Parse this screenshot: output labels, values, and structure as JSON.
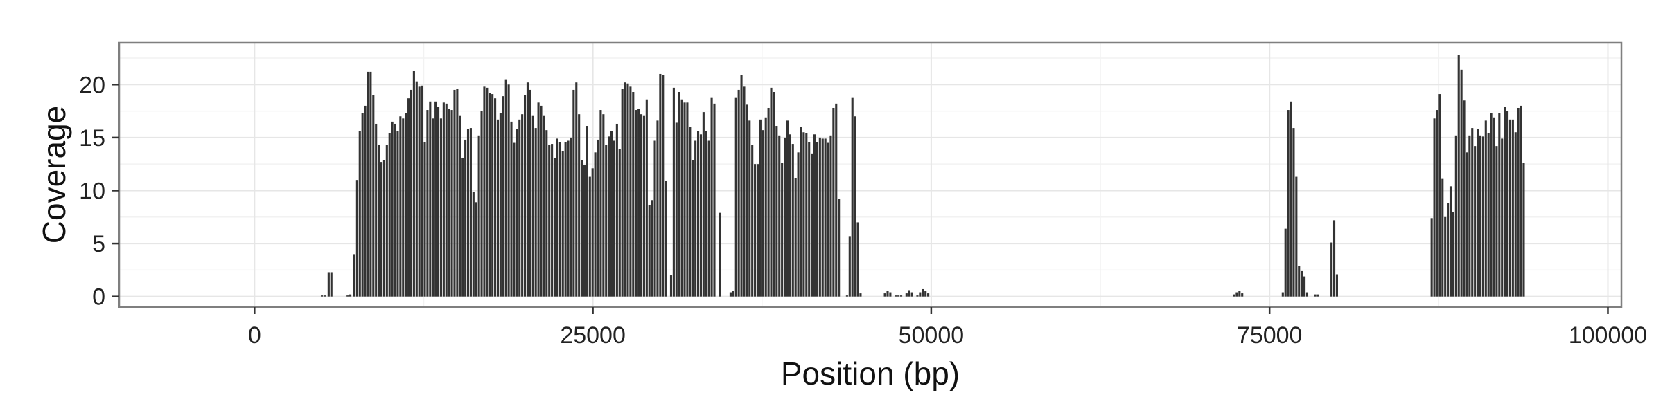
{
  "chart_data": {
    "type": "bar",
    "title": "",
    "xlabel": "Position (bp)",
    "ylabel": "Coverage",
    "xlim": [
      -10000,
      101000
    ],
    "ylim": [
      -1.0,
      24.0
    ],
    "xticks": [
      0,
      25000,
      50000,
      75000,
      100000
    ],
    "xtick_labels": [
      "0",
      "25000",
      "50000",
      "75000",
      "100000"
    ],
    "yticks": [
      0,
      5,
      10,
      15,
      20
    ],
    "ytick_labels": [
      "0",
      "5",
      "10",
      "15",
      "20"
    ],
    "grid": true,
    "bar_width": 200,
    "colors": {
      "bar": "#333333",
      "panel": "#ffffff",
      "grid_major": "#e6e6e6",
      "grid_minor": "#f2f2f2",
      "border": "#7f7f7f"
    },
    "series": [
      {
        "points": [
          [
            5000,
            0.1
          ],
          [
            5200,
            0.1
          ],
          [
            5500,
            2.3
          ],
          [
            5700,
            2.3
          ],
          [
            6900,
            0.1
          ],
          [
            7100,
            0.2
          ],
          [
            7400,
            4.0
          ],
          [
            7600,
            11.0
          ],
          [
            7800,
            15.6
          ],
          [
            8000,
            17.3
          ],
          [
            8200,
            18.0
          ],
          [
            8400,
            21.2
          ],
          [
            8600,
            21.2
          ],
          [
            8800,
            19.0
          ],
          [
            9000,
            16.3
          ],
          [
            9200,
            14.3
          ],
          [
            9400,
            12.7
          ],
          [
            9600,
            12.9
          ],
          [
            9800,
            14.3
          ],
          [
            10000,
            15.4
          ],
          [
            10200,
            16.5
          ],
          [
            10400,
            16.3
          ],
          [
            10600,
            15.6
          ],
          [
            10800,
            17.0
          ],
          [
            11000,
            16.8
          ],
          [
            11200,
            17.3
          ],
          [
            11400,
            18.7
          ],
          [
            11600,
            19.5
          ],
          [
            11800,
            21.3
          ],
          [
            12000,
            20.3
          ],
          [
            12200,
            19.8
          ],
          [
            12400,
            19.9
          ],
          [
            12600,
            14.6
          ],
          [
            12800,
            17.6
          ],
          [
            13000,
            18.4
          ],
          [
            13200,
            16.8
          ],
          [
            13400,
            18.4
          ],
          [
            13600,
            17.9
          ],
          [
            13800,
            16.8
          ],
          [
            14000,
            18.3
          ],
          [
            14200,
            18.2
          ],
          [
            14400,
            17.7
          ],
          [
            14600,
            17.6
          ],
          [
            14800,
            19.5
          ],
          [
            15000,
            19.6
          ],
          [
            15200,
            17.1
          ],
          [
            15400,
            13.1
          ],
          [
            15600,
            14.8
          ],
          [
            15800,
            15.8
          ],
          [
            16000,
            15.9
          ],
          [
            16200,
            9.9
          ],
          [
            16400,
            8.9
          ],
          [
            16600,
            15.2
          ],
          [
            16800,
            17.5
          ],
          [
            17000,
            19.8
          ],
          [
            17200,
            19.7
          ],
          [
            17400,
            19.2
          ],
          [
            17600,
            19.1
          ],
          [
            17800,
            18.7
          ],
          [
            18000,
            16.7
          ],
          [
            18200,
            17.3
          ],
          [
            18400,
            18.9
          ],
          [
            18600,
            20.5
          ],
          [
            18800,
            20.0
          ],
          [
            19000,
            16.5
          ],
          [
            19200,
            14.5
          ],
          [
            19400,
            15.8
          ],
          [
            19600,
            16.7
          ],
          [
            19800,
            17.2
          ],
          [
            20000,
            19.0
          ],
          [
            20200,
            20.2
          ],
          [
            20400,
            19.5
          ],
          [
            20600,
            17.1
          ],
          [
            20800,
            15.9
          ],
          [
            21000,
            18.3
          ],
          [
            21200,
            18.0
          ],
          [
            21400,
            17.1
          ],
          [
            21600,
            15.7
          ],
          [
            21800,
            14.3
          ],
          [
            22000,
            14.4
          ],
          [
            22200,
            13.1
          ],
          [
            22400,
            14.9
          ],
          [
            22600,
            14.6
          ],
          [
            22800,
            13.7
          ],
          [
            23000,
            14.6
          ],
          [
            23200,
            14.7
          ],
          [
            23400,
            15.0
          ],
          [
            23600,
            19.5
          ],
          [
            23800,
            20.2
          ],
          [
            24000,
            17.2
          ],
          [
            24200,
            12.9
          ],
          [
            24400,
            12.4
          ],
          [
            24600,
            16.1
          ],
          [
            24800,
            11.3
          ],
          [
            25000,
            12.1
          ],
          [
            25200,
            13.6
          ],
          [
            25400,
            14.8
          ],
          [
            25600,
            17.6
          ],
          [
            25800,
            17.2
          ],
          [
            26000,
            14.3
          ],
          [
            26200,
            15.1
          ],
          [
            26400,
            15.6
          ],
          [
            26600,
            14.7
          ],
          [
            26800,
            16.3
          ],
          [
            27000,
            13.9
          ],
          [
            27200,
            19.6
          ],
          [
            27400,
            20.2
          ],
          [
            27600,
            20.1
          ],
          [
            27800,
            19.8
          ],
          [
            28000,
            19.3
          ],
          [
            28200,
            17.6
          ],
          [
            28400,
            17.7
          ],
          [
            28600,
            17.2
          ],
          [
            28800,
            17.1
          ],
          [
            29000,
            18.6
          ],
          [
            29200,
            8.6
          ],
          [
            29400,
            9.1
          ],
          [
            29600,
            14.7
          ],
          [
            29800,
            16.6
          ],
          [
            30000,
            21.0
          ],
          [
            30200,
            20.9
          ],
          [
            30400,
            10.9
          ],
          [
            30800,
            2.0
          ],
          [
            31000,
            19.7
          ],
          [
            31200,
            16.4
          ],
          [
            31400,
            19.3
          ],
          [
            31600,
            18.6
          ],
          [
            31800,
            18.3
          ],
          [
            32000,
            18.3
          ],
          [
            32200,
            16.0
          ],
          [
            32400,
            12.9
          ],
          [
            32600,
            14.7
          ],
          [
            32800,
            15.6
          ],
          [
            33000,
            15.3
          ],
          [
            33200,
            17.4
          ],
          [
            33400,
            15.6
          ],
          [
            33600,
            14.7
          ],
          [
            33800,
            18.8
          ],
          [
            34000,
            18.2
          ],
          [
            34400,
            7.9
          ],
          [
            35200,
            0.4
          ],
          [
            35400,
            0.5
          ],
          [
            35600,
            18.8
          ],
          [
            35800,
            19.5
          ],
          [
            36000,
            20.9
          ],
          [
            36200,
            19.8
          ],
          [
            36400,
            18.1
          ],
          [
            36600,
            16.6
          ],
          [
            36800,
            14.3
          ],
          [
            37000,
            12.5
          ],
          [
            37200,
            12.5
          ],
          [
            37400,
            16.7
          ],
          [
            37600,
            15.7
          ],
          [
            37800,
            16.9
          ],
          [
            38000,
            17.8
          ],
          [
            38200,
            19.7
          ],
          [
            38400,
            19.3
          ],
          [
            38600,
            16.1
          ],
          [
            38800,
            15.2
          ],
          [
            39000,
            12.6
          ],
          [
            39200,
            15.0
          ],
          [
            39400,
            16.6
          ],
          [
            39600,
            15.3
          ],
          [
            39800,
            14.4
          ],
          [
            40000,
            11.2
          ],
          [
            40200,
            13.6
          ],
          [
            40400,
            16.0
          ],
          [
            40600,
            15.5
          ],
          [
            40800,
            15.4
          ],
          [
            41000,
            14.6
          ],
          [
            41200,
            13.5
          ],
          [
            41400,
            15.3
          ],
          [
            41600,
            14.6
          ],
          [
            41800,
            15.0
          ],
          [
            42000,
            14.9
          ],
          [
            42200,
            14.9
          ],
          [
            42400,
            14.5
          ],
          [
            42600,
            15.2
          ],
          [
            42800,
            17.8
          ],
          [
            43000,
            18.2
          ],
          [
            43200,
            9.2
          ],
          [
            43800,
            0.1
          ],
          [
            44000,
            5.7
          ],
          [
            44200,
            18.8
          ],
          [
            44400,
            17.0
          ],
          [
            44600,
            7.0
          ],
          [
            44800,
            0.3
          ],
          [
            46600,
            0.3
          ],
          [
            46800,
            0.5
          ],
          [
            47000,
            0.4
          ],
          [
            47400,
            0.1
          ],
          [
            47600,
            0.1
          ],
          [
            47800,
            0.1
          ],
          [
            48200,
            0.3
          ],
          [
            48400,
            0.6
          ],
          [
            48600,
            0.4
          ],
          [
            49000,
            0.1
          ],
          [
            49200,
            0.4
          ],
          [
            49400,
            0.7
          ],
          [
            49600,
            0.5
          ],
          [
            49800,
            0.3
          ],
          [
            72400,
            0.2
          ],
          [
            72600,
            0.4
          ],
          [
            72800,
            0.5
          ],
          [
            73000,
            0.3
          ],
          [
            76000,
            0.4
          ],
          [
            76200,
            6.4
          ],
          [
            76400,
            17.6
          ],
          [
            76600,
            18.4
          ],
          [
            76800,
            15.9
          ],
          [
            77000,
            11.3
          ],
          [
            77200,
            2.9
          ],
          [
            77400,
            2.4
          ],
          [
            77600,
            1.9
          ],
          [
            77800,
            0.4
          ],
          [
            78400,
            0.2
          ],
          [
            78600,
            0.2
          ],
          [
            79600,
            5.1
          ],
          [
            79800,
            7.2
          ],
          [
            80000,
            2.1
          ],
          [
            87000,
            7.4
          ],
          [
            87200,
            16.8
          ],
          [
            87400,
            17.6
          ],
          [
            87600,
            19.1
          ],
          [
            87800,
            11.1
          ],
          [
            88000,
            7.5
          ],
          [
            88200,
            8.8
          ],
          [
            88400,
            10.4
          ],
          [
            88600,
            8.0
          ],
          [
            88800,
            15.2
          ],
          [
            89000,
            22.8
          ],
          [
            89200,
            21.4
          ],
          [
            89400,
            18.5
          ],
          [
            89600,
            13.6
          ],
          [
            89800,
            15.2
          ],
          [
            90000,
            15.9
          ],
          [
            90200,
            14.2
          ],
          [
            90400,
            15.8
          ],
          [
            90600,
            15.2
          ],
          [
            90800,
            15.1
          ],
          [
            91000,
            16.6
          ],
          [
            91200,
            15.4
          ],
          [
            91400,
            17.3
          ],
          [
            91600,
            16.9
          ],
          [
            91800,
            14.2
          ],
          [
            92000,
            17.3
          ],
          [
            92200,
            14.9
          ],
          [
            92400,
            17.9
          ],
          [
            92600,
            17.5
          ],
          [
            92800,
            16.7
          ],
          [
            93000,
            16.7
          ],
          [
            93200,
            15.5
          ],
          [
            93400,
            17.8
          ],
          [
            93600,
            18.0
          ],
          [
            93800,
            12.6
          ]
        ]
      }
    ]
  }
}
